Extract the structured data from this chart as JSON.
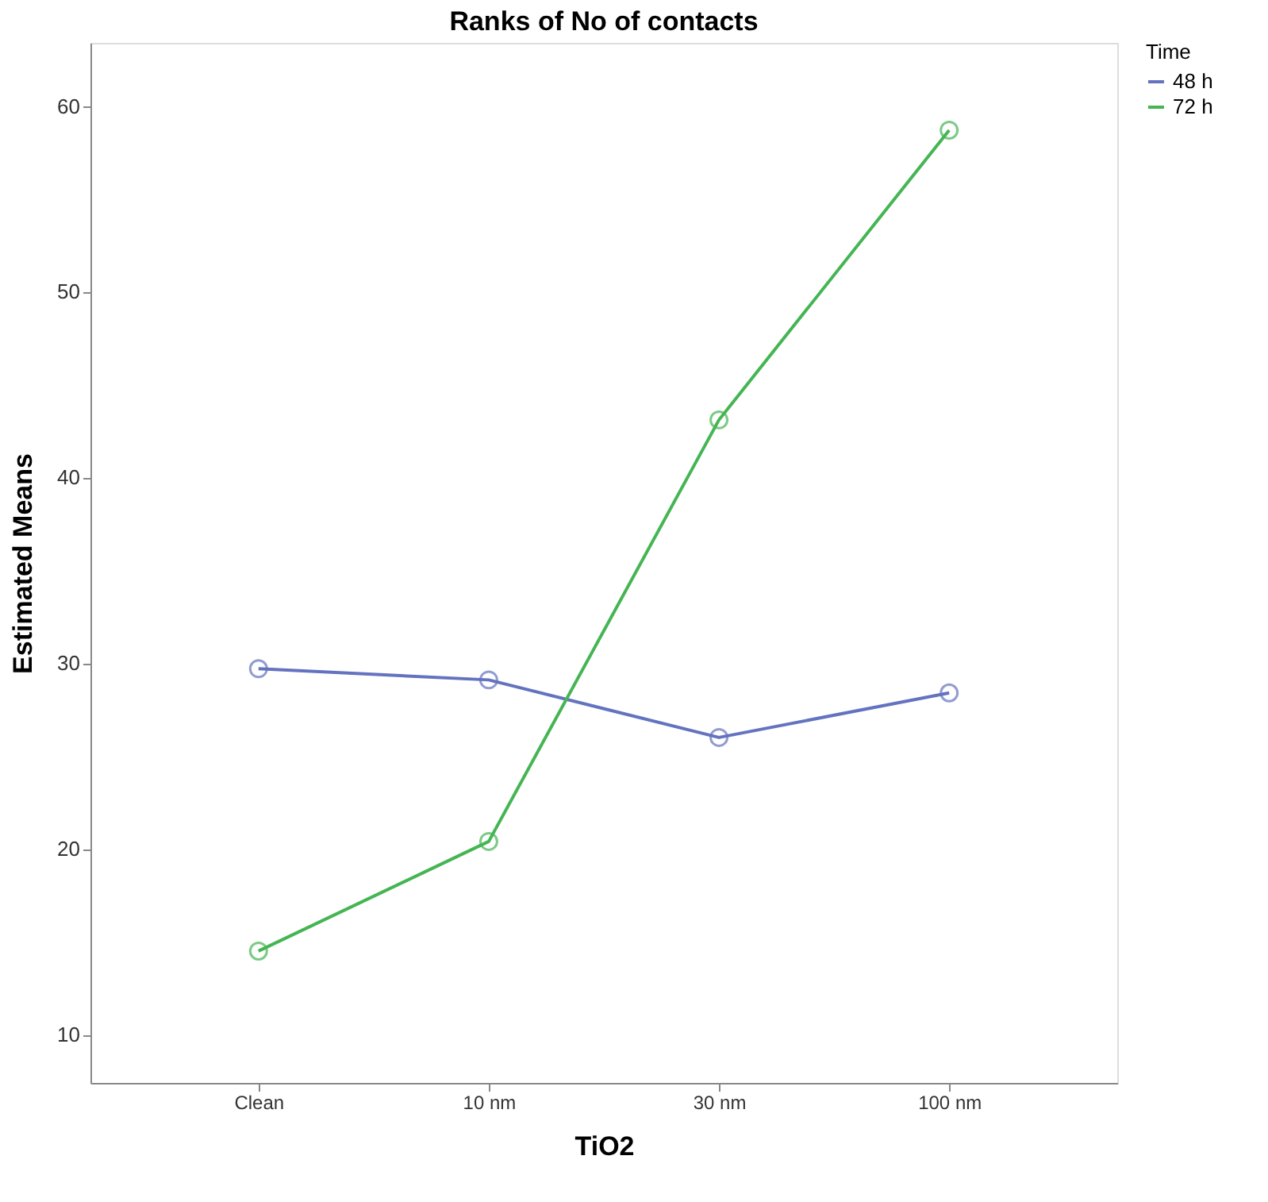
{
  "chart_data": {
    "type": "line",
    "title": "Ranks of No of contacts",
    "xlabel": "TiO2",
    "ylabel": "Estimated Means",
    "legend_title": "Time",
    "categories": [
      "Clean",
      "10 nm",
      "30 nm",
      "100 nm"
    ],
    "series": [
      {
        "name": "48 h",
        "color": "#6473c0",
        "values": [
          29.7,
          29.1,
          26.0,
          28.4
        ]
      },
      {
        "name": "72 h",
        "color": "#45b553",
        "values": [
          14.5,
          20.4,
          43.1,
          58.7
        ]
      }
    ],
    "ylim": [
      7.4,
      63.4
    ],
    "yticks": [
      10,
      20,
      30,
      40,
      50,
      60
    ],
    "grid": false,
    "legend": "right",
    "marker": "circle",
    "line_style": "solid"
  }
}
